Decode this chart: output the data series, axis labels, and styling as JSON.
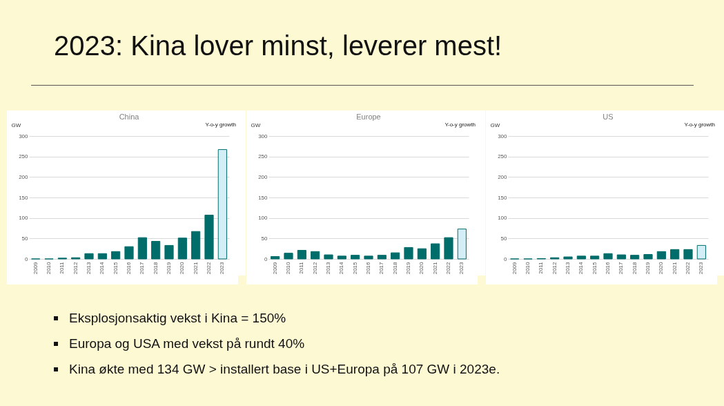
{
  "chart_data": [
    {
      "type": "other",
      "title": "2023: Kina lover minst, leverer mest!"
    },
    {
      "type": "bar",
      "title": "China",
      "ylabel": "GW",
      "annotations": [
        "Y-o-y growth"
      ],
      "categories": [
        "2009",
        "2010",
        "2011",
        "2012",
        "2013",
        "2014",
        "2015",
        "2016",
        "2017",
        "2018",
        "2019",
        "2020",
        "2021",
        "2022",
        "2023"
      ],
      "values": [
        0,
        0,
        2,
        3,
        13,
        13,
        18,
        30,
        52,
        43,
        33,
        51,
        67,
        107,
        267
      ],
      "colors": [
        "#006d6a",
        "#006d6a",
        "#006d6a",
        "#006d6a",
        "#006d6a",
        "#006d6a",
        "#006d6a",
        "#006d6a",
        "#006d6a",
        "#006d6a",
        "#006d6a",
        "#006d6a",
        "#006d6a",
        "#006d6a",
        "#d4eef8"
      ],
      "ylim": [
        0,
        300
      ],
      "yticks": [
        0,
        50,
        100,
        150,
        200,
        250,
        300
      ],
      "grid": "y"
    },
    {
      "type": "bar",
      "title": "Europe",
      "ylabel": "GW",
      "annotations": [
        "Y-o-y growth"
      ],
      "categories": [
        "2009",
        "2010",
        "2011",
        "2012",
        "2013",
        "2014",
        "2015",
        "2016",
        "2017",
        "2018",
        "2019",
        "2020",
        "2021",
        "2022",
        "2023"
      ],
      "values": [
        6,
        14,
        21,
        18,
        10,
        7,
        9,
        7,
        9,
        15,
        28,
        25,
        37,
        52,
        73
      ],
      "colors": [
        "#006d6a",
        "#006d6a",
        "#006d6a",
        "#006d6a",
        "#006d6a",
        "#006d6a",
        "#006d6a",
        "#006d6a",
        "#006d6a",
        "#006d6a",
        "#006d6a",
        "#006d6a",
        "#006d6a",
        "#006d6a",
        "#d4eef8"
      ],
      "ylim": [
        0,
        300
      ],
      "yticks": [
        0,
        50,
        100,
        150,
        200,
        250,
        300
      ],
      "grid": "y"
    },
    {
      "type": "bar",
      "title": "US",
      "ylabel": "GW",
      "annotations": [
        "Y-o-y growth"
      ],
      "categories": [
        "2009",
        "2010",
        "2011",
        "2012",
        "2013",
        "2014",
        "2015",
        "2016",
        "2017",
        "2018",
        "2019",
        "2020",
        "2021",
        "2022",
        "2023"
      ],
      "values": [
        0,
        0,
        1,
        3,
        5,
        7,
        7,
        13,
        10,
        9,
        11,
        18,
        23,
        23,
        33
      ],
      "colors": [
        "#006d6a",
        "#006d6a",
        "#006d6a",
        "#006d6a",
        "#006d6a",
        "#006d6a",
        "#006d6a",
        "#006d6a",
        "#006d6a",
        "#006d6a",
        "#006d6a",
        "#006d6a",
        "#006d6a",
        "#006d6a",
        "#d4eef8"
      ],
      "ylim": [
        0,
        300
      ],
      "yticks": [
        0,
        50,
        100,
        150,
        200,
        250,
        300
      ],
      "grid": "y"
    },
    {
      "type": "other",
      "annotations": [
        "Eksplosjonsaktig vekst i Kina = 150%",
        "Europa og USA med vekst på rundt 40%",
        "Kina økte med 134 GW > installert base i US+Europa på 107 GW i 2023e."
      ]
    }
  ]
}
